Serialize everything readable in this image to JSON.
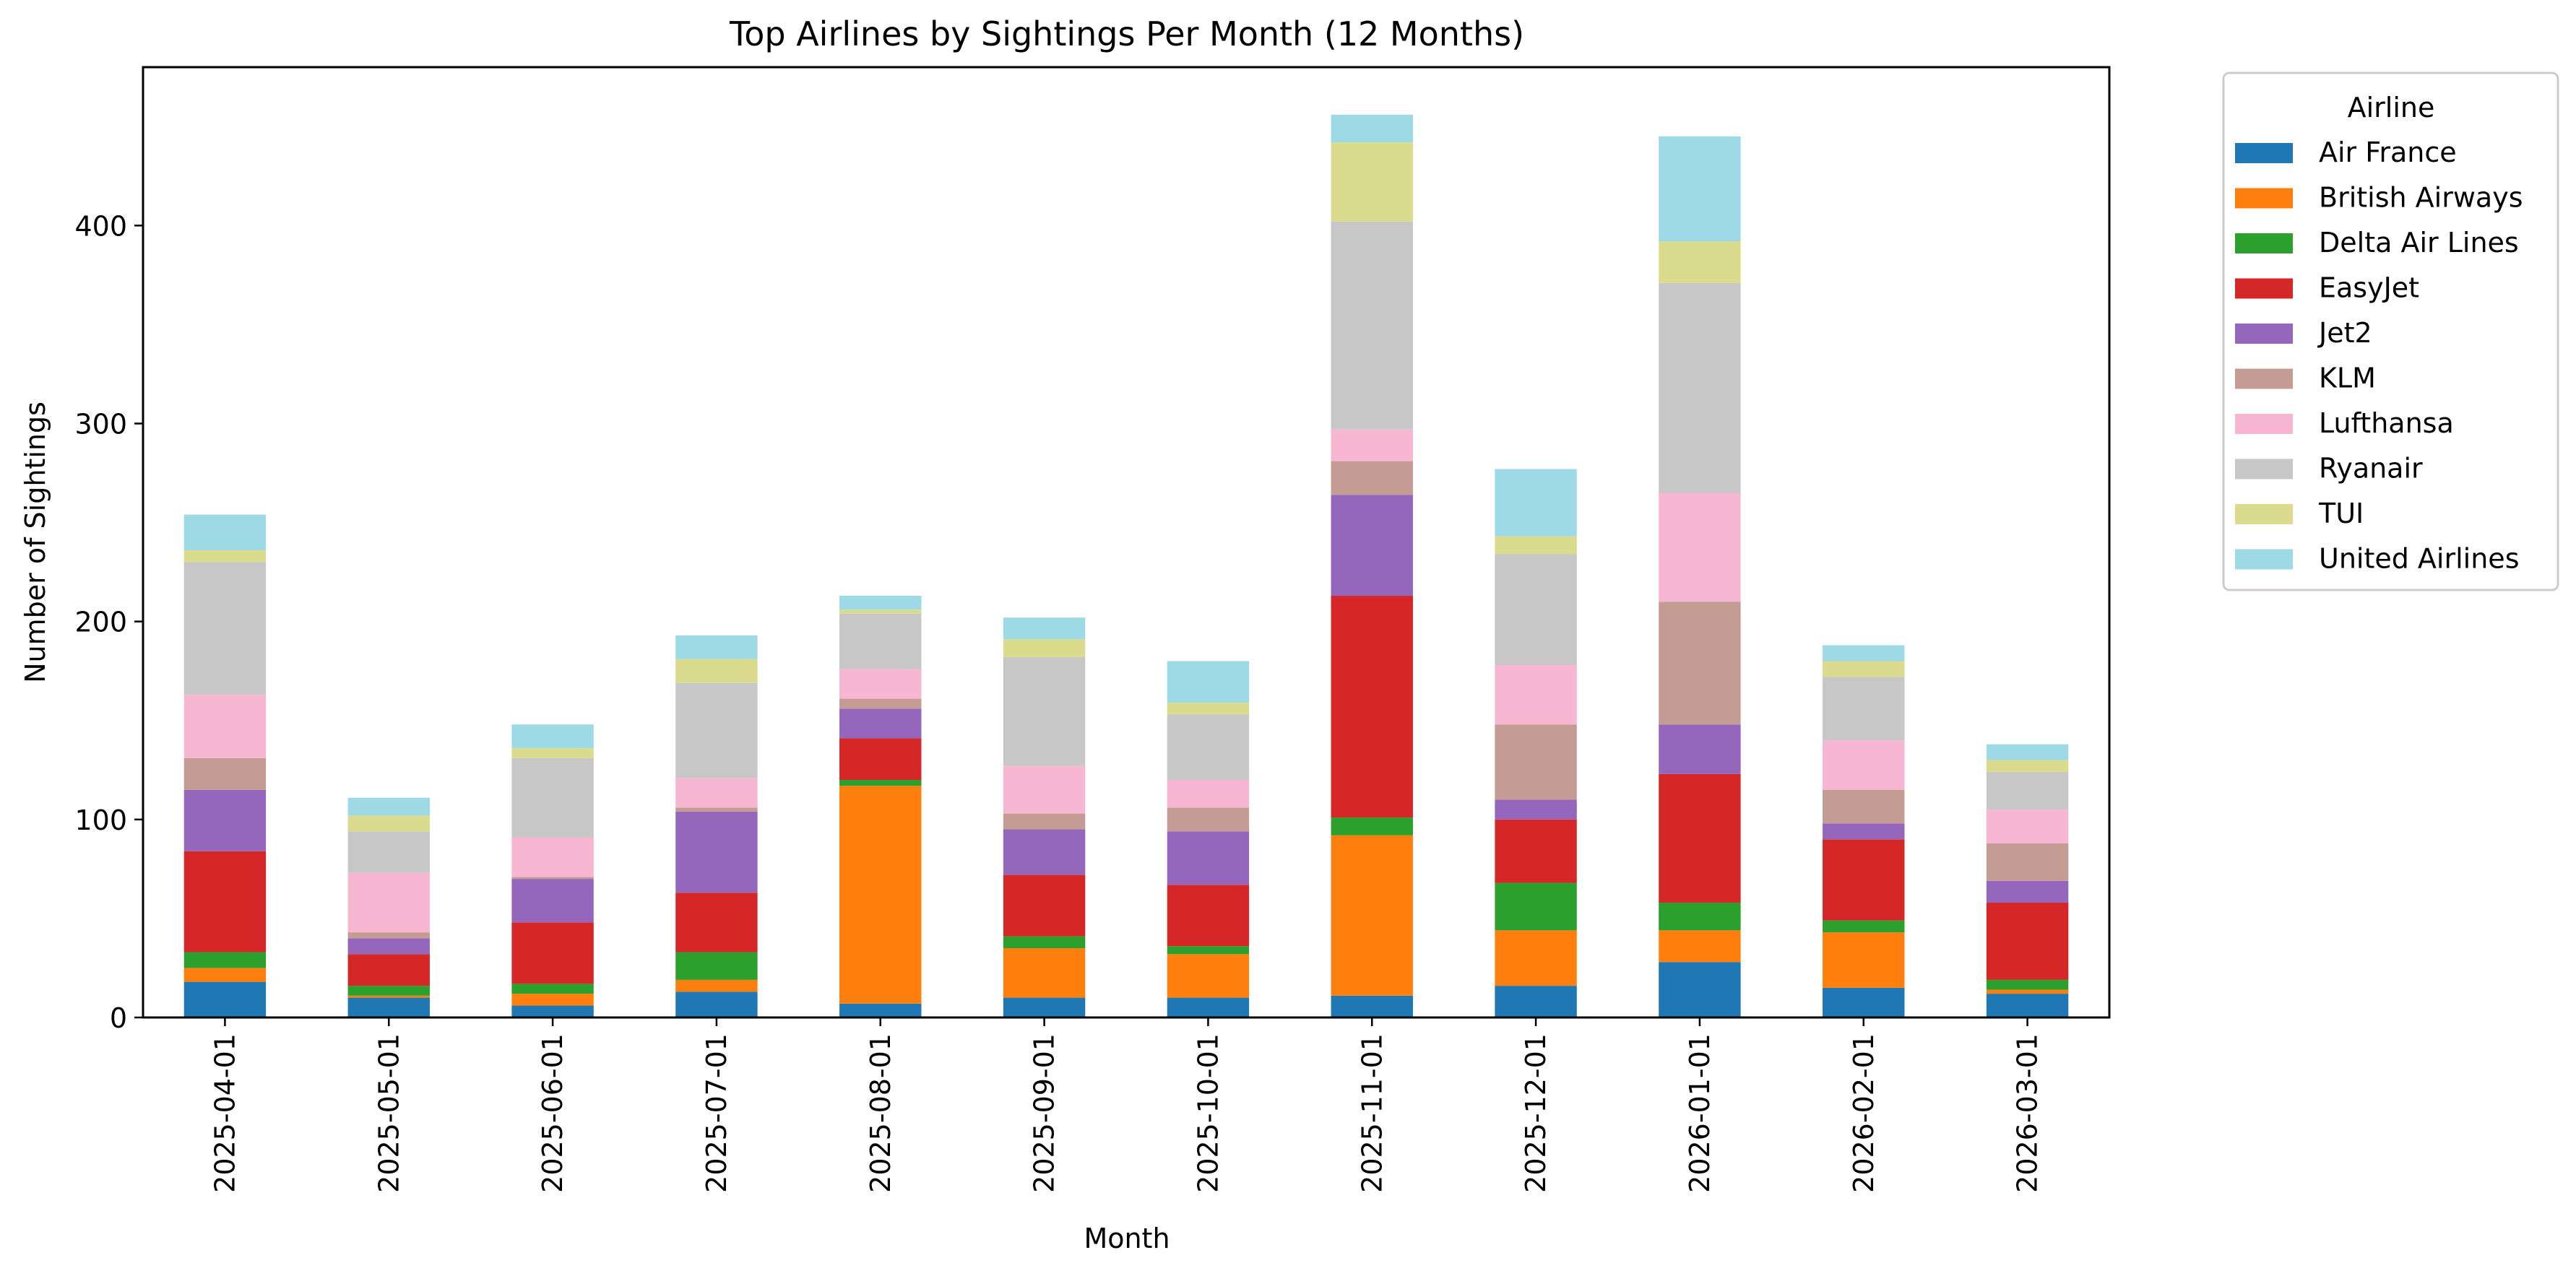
{
  "chart_data": {
    "type": "bar",
    "stacked": true,
    "title": "Top Airlines by Sightings Per Month (12 Months)",
    "xlabel": "Month",
    "ylabel": "Number of Sightings",
    "ylim": [
      0,
      480
    ],
    "yticks": [
      0,
      100,
      200,
      300,
      400
    ],
    "grid": false,
    "legend": {
      "title": "Airline",
      "placement": "outside-top-right"
    },
    "categories": [
      "2025-04-01",
      "2025-05-01",
      "2025-06-01",
      "2025-07-01",
      "2025-08-01",
      "2025-09-01",
      "2025-10-01",
      "2025-11-01",
      "2025-12-01",
      "2026-01-01",
      "2026-02-01",
      "2026-03-01"
    ],
    "series": [
      {
        "name": "Air France",
        "color": "#1f77b4",
        "values": [
          18,
          10,
          6,
          13,
          7,
          10,
          10,
          11,
          16,
          28,
          15,
          12
        ]
      },
      {
        "name": "British Airways",
        "color": "#ff7f0e",
        "values": [
          7,
          1,
          6,
          6,
          110,
          25,
          22,
          81,
          28,
          16,
          28,
          2
        ]
      },
      {
        "name": "Delta Air Lines",
        "color": "#2ca02c",
        "values": [
          8,
          5,
          5,
          14,
          3,
          6,
          4,
          9,
          24,
          14,
          6,
          5
        ]
      },
      {
        "name": "EasyJet",
        "color": "#d62728",
        "values": [
          51,
          16,
          31,
          30,
          21,
          31,
          31,
          112,
          32,
          65,
          41,
          39
        ]
      },
      {
        "name": "Jet2",
        "color": "#9467bd",
        "values": [
          31,
          8,
          22,
          41,
          15,
          23,
          27,
          51,
          10,
          25,
          8,
          11
        ]
      },
      {
        "name": "KLM",
        "color": "#c49c94",
        "values": [
          16,
          3,
          1,
          2,
          5,
          8,
          12,
          17,
          38,
          62,
          17,
          19
        ]
      },
      {
        "name": "Lufthansa",
        "color": "#f7b6d2",
        "values": [
          32,
          30,
          20,
          15,
          15,
          24,
          14,
          16,
          30,
          55,
          25,
          17
        ]
      },
      {
        "name": "Ryanair",
        "color": "#c7c7c7",
        "values": [
          67,
          21,
          40,
          48,
          28,
          55,
          33,
          105,
          56,
          106,
          32,
          19
        ]
      },
      {
        "name": "TUI",
        "color": "#dbdb8d",
        "values": [
          6,
          8,
          5,
          12,
          2,
          9,
          6,
          40,
          9,
          21,
          8,
          6
        ]
      },
      {
        "name": "United Airlines",
        "color": "#9edae5",
        "values": [
          18,
          9,
          12,
          12,
          7,
          11,
          21,
          14,
          34,
          53,
          8,
          8
        ]
      }
    ]
  }
}
